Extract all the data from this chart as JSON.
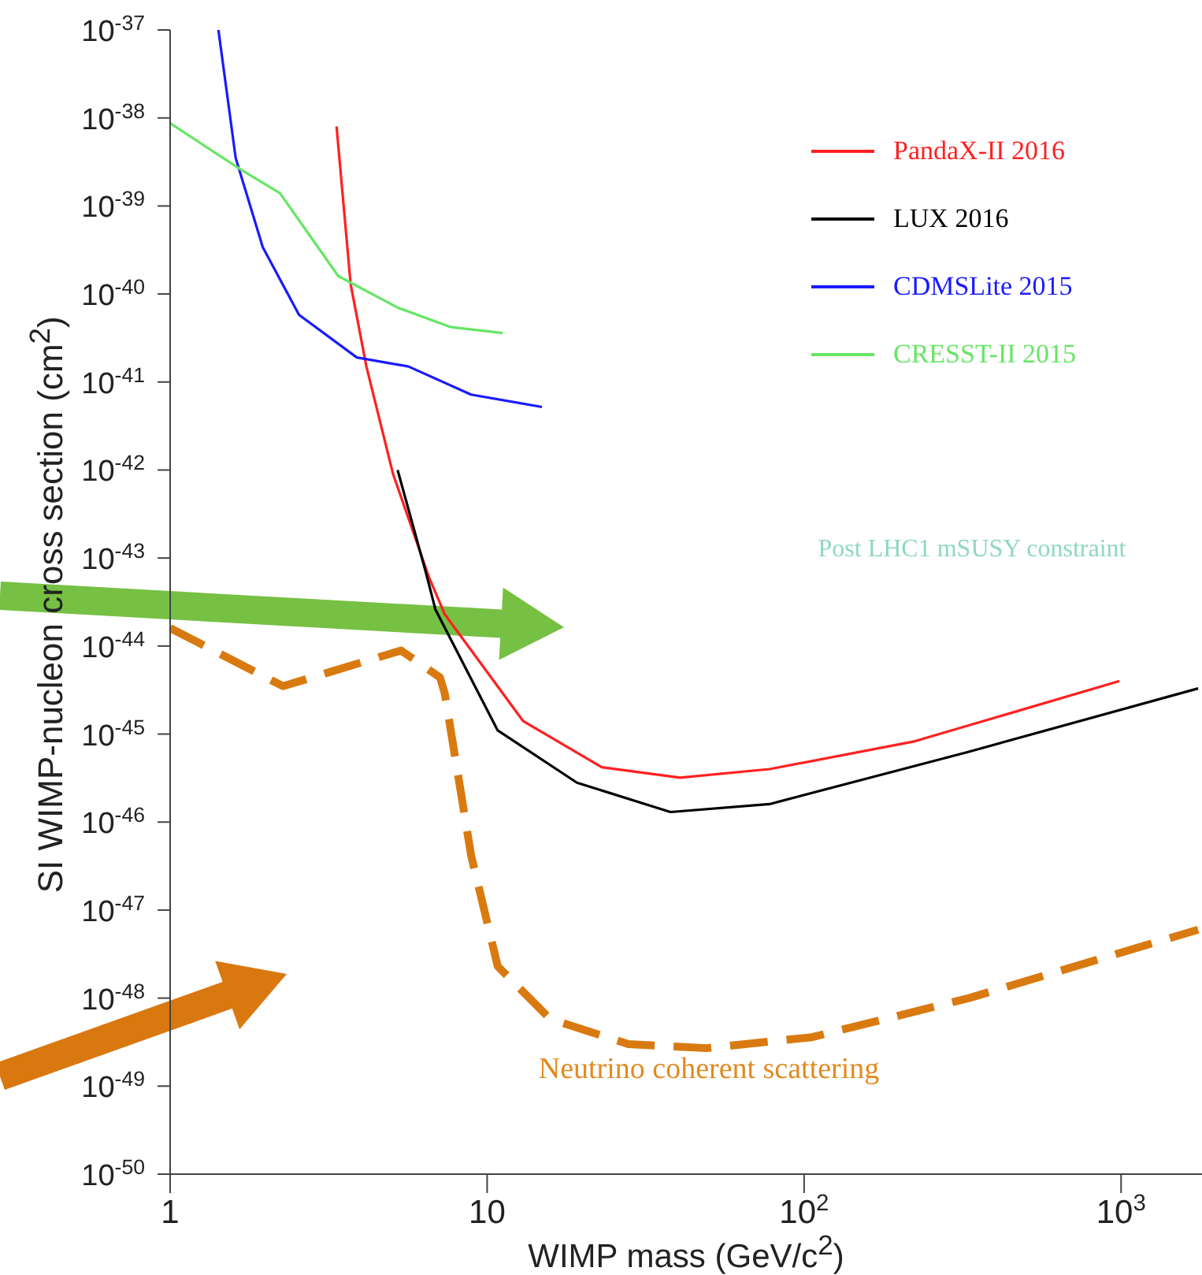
{
  "chart_data": {
    "type": "line",
    "xlabel": "WIMP mass (GeV/c$^{2}$)",
    "ylabel": "SI WIMP-nucleon cross section (cm$^{2}$)",
    "log": "xy",
    "xlim": [
      1,
      1800
    ],
    "xticks": [
      1,
      10,
      {
        "value": 100,
        "label": "10$^{2}$"
      },
      {
        "value": 1000,
        "label": "10$^{3}$"
      }
    ],
    "ylim": [
      1e-50,
      1e-37
    ],
    "yticks": [
      {
        "value": 1e-50,
        "label": "10$^{-50}$"
      },
      {
        "value": 1e-49,
        "label": "10$^{-49}$"
      },
      {
        "value": 1e-48,
        "label": "10$^{-48}$"
      },
      {
        "value": 1e-47,
        "label": "10$^{-47}$"
      },
      {
        "value": 1e-46,
        "label": "10$^{-46}$"
      },
      {
        "value": 1e-45,
        "label": "10$^{-45}$"
      },
      {
        "value": 1e-44,
        "label": "10$^{-44}$"
      },
      {
        "value": 1e-43,
        "label": "10$^{-43}$"
      },
      {
        "value": 1e-42,
        "label": "10$^{-42}$"
      },
      {
        "value": 1e-41,
        "label": "10$^{-41}$"
      },
      {
        "value": 1e-40,
        "label": "10$^{-40}$"
      },
      {
        "value": 1e-39,
        "label": "10$^{-39}$"
      },
      {
        "value": 1e-38,
        "label": "10$^{-38}$"
      },
      {
        "value": 1e-37,
        "label": "10$^{-37}$"
      }
    ],
    "legend": "top right",
    "marker": "none",
    "series": [
      {
        "name": "PandaX-II 2016",
        "color": "#ff2020",
        "x": [
          3.35,
          3.71,
          4.16,
          5.05,
          6.56,
          7.35,
          13,
          23,
          40.6,
          77.8,
          224,
          988
        ],
        "values": [
          8e-39,
          1.3e-40,
          1.5e-41,
          9e-43,
          6e-44,
          2.3e-44,
          1.4e-45,
          4.2e-46,
          3.2e-46,
          4e-46,
          8.3e-46,
          4e-45
        ]
      },
      {
        "name": "LUX 2016",
        "color": "#000000",
        "x": [
          5.22,
          6.4,
          6.87,
          10.8,
          19.2,
          37.9,
          77.8,
          331,
          1750
        ],
        "values": [
          1e-42,
          7e-44,
          2.6e-44,
          1.1e-45,
          2.8e-46,
          1.3e-46,
          1.6e-46,
          6.3e-46,
          3.3e-45
        ]
      },
      {
        "name": "CDMSLite 2015",
        "color": "#1a1aff",
        "x": [
          1.42,
          1.61,
          1.96,
          2.55,
          3.88,
          5.65,
          8.9,
          14.9
        ],
        "values": [
          1e-37,
          3.5e-39,
          3.4e-40,
          5.8e-41,
          1.9e-41,
          1.5e-41,
          7.2e-42,
          5.2e-42
        ]
      },
      {
        "name": "CRESST-II 2015",
        "color": "#66e666",
        "x": [
          1,
          1.67,
          2.22,
          3.39,
          5.22,
          7.7,
          11.2
        ],
        "values": [
          8.7e-39,
          2.6e-39,
          1.4e-39,
          1.6e-40,
          7e-41,
          4.2e-41,
          3.6e-41
        ]
      },
      {
        "color": "#d97a10",
        "line_style": "dashed",
        "x": [
          1,
          2.27,
          5.35,
          7.1,
          7.35,
          8.9,
          10.8,
          15.8,
          27.9,
          49.3,
          106,
          331,
          1750
        ],
        "values": [
          1.6e-44,
          3.5e-45,
          8.9e-45,
          4.4e-45,
          2.9e-45,
          4.2e-47,
          2.3e-48,
          5.8e-49,
          3e-49,
          2.7e-49,
          3.6e-49,
          1e-48,
          6e-48
        ]
      }
    ],
    "annotations": [
      "Post LHC1 mSUSY constraint",
      "Neutrino coherent scattering"
    ]
  }
}
